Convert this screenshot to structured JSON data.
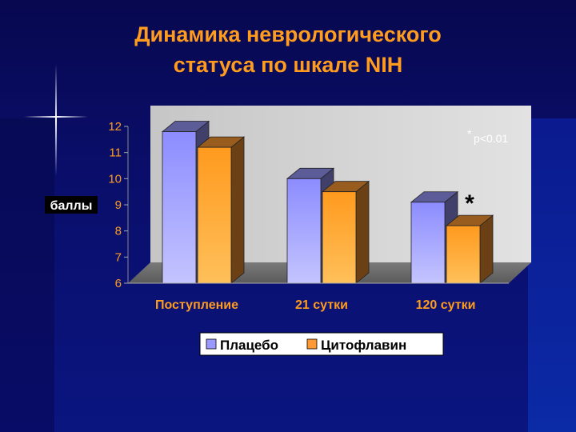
{
  "slide": {
    "title_line1": "Динамика неврологического",
    "title_line2": "статуса по шкале NIH"
  },
  "chart_data": {
    "type": "bar",
    "ylabel": "баллы",
    "ylim": [
      6,
      12
    ],
    "yticks": [
      6,
      7,
      8,
      9,
      10,
      11,
      12
    ],
    "categories": [
      "Поступление",
      "21 сутки",
      "120 сутки"
    ],
    "series": [
      {
        "name": "Плацебо",
        "values": [
          11.8,
          10.0,
          9.1
        ],
        "color": "#9999ff"
      },
      {
        "name": "Цитофлавин",
        "values": [
          11.2,
          9.5,
          8.2
        ],
        "color": "#ff9933"
      }
    ],
    "annotations": {
      "significance_mark": "*",
      "significance_note_star": "*",
      "significance_note_text": "р<0.01"
    },
    "legend_position": "bottom",
    "grid": false
  }
}
